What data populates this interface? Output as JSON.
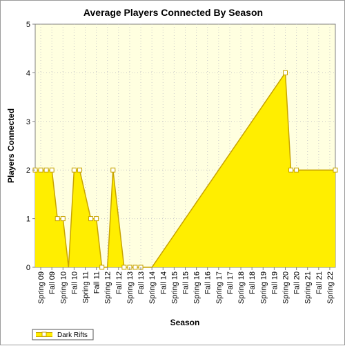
{
  "chart_data": {
    "type": "area",
    "title": "Average Players Connected By Season",
    "xlabel": "Season",
    "ylabel": "Players Connected",
    "ylim": [
      0,
      5
    ],
    "yticks": [
      0,
      1,
      2,
      3,
      4,
      5
    ],
    "grid": true,
    "legend_position": "bottom-left",
    "x_tick_labels": [
      "Spring 09",
      "Fall 09",
      "Spring 10",
      "Fall 10",
      "Spring 11",
      "Fall 11",
      "Spring 12",
      "Fall 12",
      "Spring 13",
      "Fall 13",
      "Spring 14",
      "Fall 14",
      "Spring 15",
      "Fall 15",
      "Spring 16",
      "Fall 16",
      "Spring 17",
      "Fall 17",
      "Spring 18",
      "Fall 18",
      "Spring 19",
      "Fall 19",
      "Spring 20",
      "Fall 20",
      "Spring 21",
      "Fall 21",
      "Spring 22"
    ],
    "series": [
      {
        "name": "Dark Rifts",
        "color": "#ffee00",
        "line_color": "#c8a400",
        "points": [
          {
            "x": 0.0,
            "y": 2,
            "marker": true
          },
          {
            "x": 0.5,
            "y": 2,
            "marker": true
          },
          {
            "x": 1.0,
            "y": 2,
            "marker": true
          },
          {
            "x": 1.5,
            "y": 2,
            "marker": true
          },
          {
            "x": 2.0,
            "y": 1,
            "marker": true
          },
          {
            "x": 2.5,
            "y": 1,
            "marker": true
          },
          {
            "x": 3.0,
            "y": 0,
            "marker": false
          },
          {
            "x": 3.5,
            "y": 2,
            "marker": true
          },
          {
            "x": 4.0,
            "y": 2,
            "marker": true
          },
          {
            "x": 5.0,
            "y": 1,
            "marker": true
          },
          {
            "x": 5.5,
            "y": 1,
            "marker": true
          },
          {
            "x": 6.0,
            "y": 0,
            "marker": true
          },
          {
            "x": 6.5,
            "y": 0,
            "marker": false
          },
          {
            "x": 7.0,
            "y": 2,
            "marker": true
          },
          {
            "x": 8.0,
            "y": 0,
            "marker": true
          },
          {
            "x": 8.5,
            "y": 0,
            "marker": true
          },
          {
            "x": 9.0,
            "y": 0,
            "marker": true
          },
          {
            "x": 9.5,
            "y": 0,
            "marker": true
          },
          {
            "x": 10.5,
            "y": 0,
            "marker": false
          },
          {
            "x": 22.5,
            "y": 4,
            "marker": true
          },
          {
            "x": 23.0,
            "y": 2,
            "marker": true
          },
          {
            "x": 23.5,
            "y": 2,
            "marker": true
          },
          {
            "x": 27.0,
            "y": 2,
            "marker": true
          }
        ]
      }
    ]
  }
}
